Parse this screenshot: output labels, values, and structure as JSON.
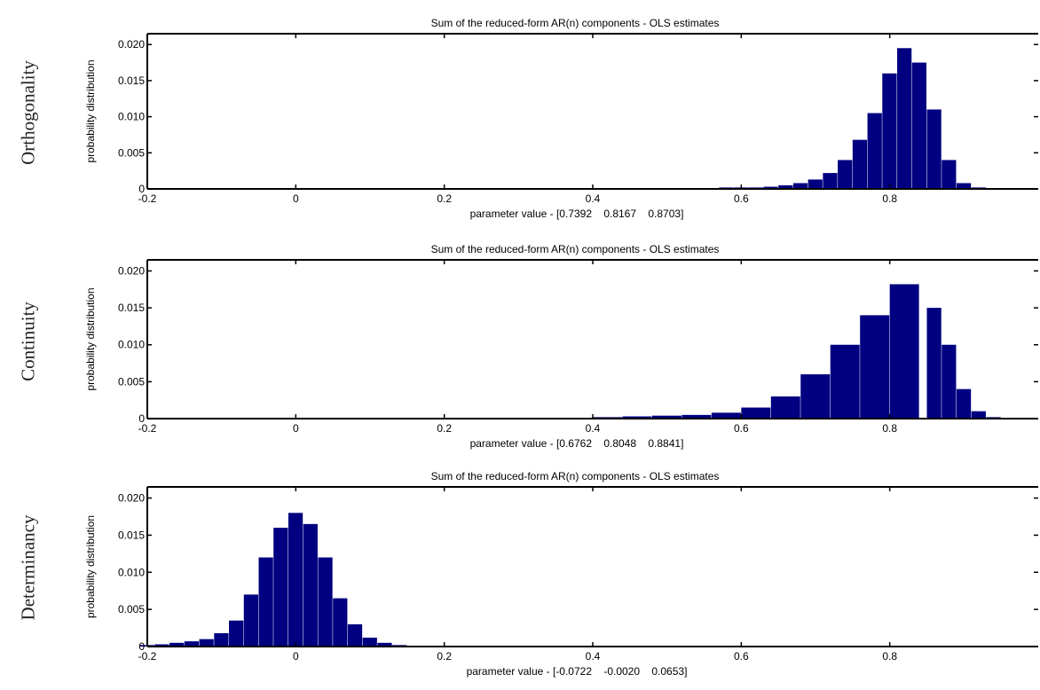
{
  "row_labels": [
    "Orthogonality",
    "Continuity",
    "Determinancy"
  ],
  "colors": {
    "bars": "#000080",
    "axes": "#000000"
  },
  "chart_data": [
    {
      "type": "bar",
      "title": "Sum of the reduced-form AR(n) components - OLS estimates",
      "xlabel": "parameter value - [0.7392    0.8167    0.8703]",
      "ylabel": "probability distribution",
      "xlim": [
        -0.2,
        1.0
      ],
      "ylim": [
        0,
        0.0215
      ],
      "xticks": [
        -0.2,
        0,
        0.2,
        0.4,
        0.6,
        0.8
      ],
      "xtick_labels": [
        "-0.2",
        "0",
        "0.2",
        "0.4",
        "0.6",
        "0.8"
      ],
      "yticks": [
        0,
        0.005,
        0.01,
        0.015,
        0.02
      ],
      "ytick_labels": [
        "0",
        "0.005",
        "0.010",
        "0.015",
        "0.020"
      ],
      "series": [
        {
          "x": [
            0.58,
            0.6,
            0.62,
            0.64,
            0.66,
            0.68,
            0.7,
            0.72,
            0.74,
            0.76,
            0.78,
            0.8,
            0.82,
            0.84,
            0.86,
            0.88,
            0.9,
            0.92,
            0.94
          ],
          "values": [
            0.0002,
            0.0002,
            0.0002,
            0.0003,
            0.0005,
            0.0008,
            0.0013,
            0.0022,
            0.004,
            0.0068,
            0.0105,
            0.016,
            0.0195,
            0.0175,
            0.011,
            0.004,
            0.0008,
            0.0002,
            0.0001
          ]
        }
      ]
    },
    {
      "type": "bar",
      "title": "Sum of the reduced-form AR(n) components - OLS estimates",
      "xlabel": "parameter value - [0.6762    0.8048    0.8841]",
      "ylabel": "probability distribution",
      "xlim": [
        -0.2,
        1.0
      ],
      "ylim": [
        0,
        0.0215
      ],
      "xticks": [
        -0.2,
        0,
        0.2,
        0.4,
        0.6,
        0.8
      ],
      "xtick_labels": [
        "-0.2",
        "0",
        "0.2",
        "0.4",
        "0.6",
        "0.8"
      ],
      "yticks": [
        0,
        0.005,
        0.01,
        0.015,
        0.02
      ],
      "ytick_labels": [
        "0",
        "0.005",
        "0.010",
        "0.015",
        "0.020"
      ],
      "series": [
        {
          "x": [
            0.42,
            0.46,
            0.5,
            0.54,
            0.58,
            0.62,
            0.66,
            0.7,
            0.74,
            0.78,
            0.82,
            0.86,
            0.88,
            0.9,
            0.92,
            0.94
          ],
          "values": [
            0.0002,
            0.0003,
            0.0004,
            0.0005,
            0.0008,
            0.0015,
            0.003,
            0.006,
            0.01,
            0.014,
            0.0182,
            0.015,
            0.01,
            0.004,
            0.001,
            0.0002
          ]
        }
      ]
    },
    {
      "type": "bar",
      "title": "Sum of the reduced-form AR(n) components - OLS estimates",
      "xlabel": "parameter value - [-0.0722    -0.0020    0.0653]",
      "ylabel": "probability distribution",
      "xlim": [
        -0.2,
        1.0
      ],
      "ylim": [
        0,
        0.0215
      ],
      "xticks": [
        -0.2,
        0,
        0.2,
        0.4,
        0.6,
        0.8
      ],
      "xtick_labels": [
        "-0.2",
        "0",
        "0.2",
        "0.4",
        "0.6",
        "0.8"
      ],
      "yticks": [
        0,
        0.005,
        0.01,
        0.015,
        0.02
      ],
      "ytick_labels": [
        "0",
        "0.005",
        "0.010",
        "0.015",
        "0.020"
      ],
      "series": [
        {
          "x": [
            -0.2,
            -0.18,
            -0.16,
            -0.14,
            -0.12,
            -0.1,
            -0.08,
            -0.06,
            -0.04,
            -0.02,
            0.0,
            0.02,
            0.04,
            0.06,
            0.08,
            0.1,
            0.12,
            0.14,
            0.16
          ],
          "values": [
            0.0002,
            0.0003,
            0.0005,
            0.0007,
            0.001,
            0.0018,
            0.0035,
            0.007,
            0.012,
            0.016,
            0.018,
            0.0165,
            0.012,
            0.0065,
            0.003,
            0.0012,
            0.0005,
            0.0002,
            0.0001
          ]
        }
      ]
    }
  ]
}
